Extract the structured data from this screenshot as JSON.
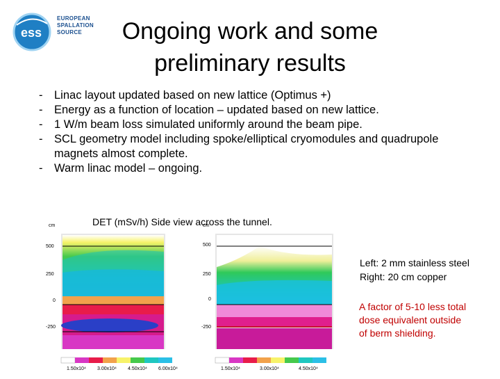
{
  "header": {
    "logo_lines": [
      "EUROPEAN",
      "SPALLATION",
      "SOURCE"
    ],
    "title_line1": "Ongoing work and some",
    "title_line2": "preliminary results"
  },
  "bullets": [
    "Linac layout updated based on new lattice (Optimus +)",
    "Energy as a function of location – updated based on new lattice.",
    "1 W/m beam loss simulated uniformly around the beam pipe.",
    "SCL geometry model including spoke/elliptical cryomodules and quadrupole magnets almost complete.",
    "Warm linac model – ongoing."
  ],
  "figure": {
    "caption": "DET (mSv/h) Side view across the tunnel.",
    "left_plot": {
      "unit": "cm",
      "y_ticks": [
        "500",
        "250",
        "0",
        "-250"
      ],
      "colorbar_ticks": [
        "1.50x10⁴",
        "3.00x10⁴",
        "4.50x10⁴",
        "6.00x10⁴"
      ]
    },
    "right_plot": {
      "unit": "cm",
      "y_ticks": [
        "500",
        "250",
        "0",
        "-250"
      ],
      "colorbar_ticks": [
        "1.50x10⁴",
        "3.00x10⁴",
        "4.50x10⁴"
      ]
    }
  },
  "notes": {
    "materials_line1": "Left: 2 mm stainless steel",
    "materials_line2": "Right: 20 cm copper",
    "result_line1": "A factor of 5-10 less total",
    "result_line2": "dose equivalent outside",
    "result_line3": "of berm shielding."
  }
}
